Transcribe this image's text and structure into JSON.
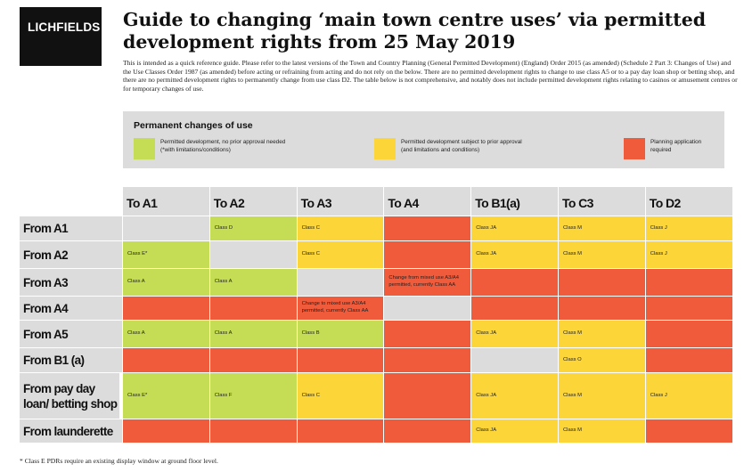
{
  "logo": "LICHFIELDS",
  "title": "Guide to changing ‘main town centre uses’ via permitted development rights from 25 May 2019",
  "intro": "This is intended as a quick reference guide.  Please refer to the latest versions of the Town and Country Planning (General Permitted Development) (England) Order 2015 (as amended) (Schedule 2 Part 3: Changes of Use) and the Use Classes Order 1987 (as amended) before acting or refraining from acting and do not rely on the below. There are no permitted development rights to change to use class A5 or to a pay day loan shop or betting shop, and there are no permitted development rights to permanently change from use class D2. The table below is not comprehensive, and notably does not include permitted development rights relating to casinos or amusement centres or for temporary changes of use.",
  "legend": {
    "title": "Permanent changes of use",
    "items": [
      {
        "color": "#c5dd55",
        "text": "Permitted development, no prior approval needed (*with limitations/conditions)"
      },
      {
        "color": "#fcd538",
        "text": "Permitted development subject to prior approval (and limitations and conditions)"
      },
      {
        "color": "#f05b3c",
        "text": "Planning application required"
      }
    ]
  },
  "columns": [
    "To A1",
    "To A2",
    "To A3",
    "To A4",
    "To B1(a)",
    "To C3",
    "To D2"
  ],
  "rows": [
    {
      "label": "From A1",
      "cells": [
        {
          "c": "n",
          "t": ""
        },
        {
          "c": "g",
          "t": "Class D"
        },
        {
          "c": "y",
          "t": "Class C"
        },
        {
          "c": "r",
          "t": ""
        },
        {
          "c": "y",
          "t": "Class JA"
        },
        {
          "c": "y",
          "t": "Class M"
        },
        {
          "c": "y",
          "t": "Class J"
        }
      ]
    },
    {
      "label": "From A2",
      "cells": [
        {
          "c": "g",
          "t": "Class E*"
        },
        {
          "c": "n",
          "t": ""
        },
        {
          "c": "y",
          "t": "Class C"
        },
        {
          "c": "r",
          "t": ""
        },
        {
          "c": "y",
          "t": "Class JA"
        },
        {
          "c": "y",
          "t": "Class M"
        },
        {
          "c": "y",
          "t": "Class J"
        }
      ]
    },
    {
      "label": "From A3",
      "cells": [
        {
          "c": "g",
          "t": "Class A"
        },
        {
          "c": "g",
          "t": "Class A"
        },
        {
          "c": "n",
          "t": ""
        },
        {
          "c": "r",
          "t": "Change from mixed use A3/A4 permitted, currently Class AA"
        },
        {
          "c": "r",
          "t": ""
        },
        {
          "c": "r",
          "t": ""
        },
        {
          "c": "r",
          "t": ""
        }
      ]
    },
    {
      "label": "From A4",
      "cells": [
        {
          "c": "r",
          "t": ""
        },
        {
          "c": "r",
          "t": ""
        },
        {
          "c": "r",
          "t": "Change to mixed use A3/A4 permitted, currently Class AA"
        },
        {
          "c": "n",
          "t": ""
        },
        {
          "c": "r",
          "t": ""
        },
        {
          "c": "r",
          "t": ""
        },
        {
          "c": "r",
          "t": ""
        }
      ]
    },
    {
      "label": "From A5",
      "cells": [
        {
          "c": "g",
          "t": "Class A"
        },
        {
          "c": "g",
          "t": "Class A"
        },
        {
          "c": "g",
          "t": "Class B"
        },
        {
          "c": "r",
          "t": ""
        },
        {
          "c": "y",
          "t": "Class JA"
        },
        {
          "c": "y",
          "t": "Class M"
        },
        {
          "c": "r",
          "t": ""
        }
      ]
    },
    {
      "label": "From B1 (a)",
      "cells": [
        {
          "c": "r",
          "t": ""
        },
        {
          "c": "r",
          "t": ""
        },
        {
          "c": "r",
          "t": ""
        },
        {
          "c": "r",
          "t": ""
        },
        {
          "c": "n",
          "t": ""
        },
        {
          "c": "y",
          "t": "Class O"
        },
        {
          "c": "r",
          "t": ""
        }
      ]
    },
    {
      "label": "From pay day loan/ betting shop",
      "cells": [
        {
          "c": "g",
          "t": "Class E*"
        },
        {
          "c": "g",
          "t": "Class F"
        },
        {
          "c": "y",
          "t": "Class C"
        },
        {
          "c": "r",
          "t": ""
        },
        {
          "c": "y",
          "t": "Class JA"
        },
        {
          "c": "y",
          "t": "Class M"
        },
        {
          "c": "y",
          "t": "Class J"
        }
      ]
    },
    {
      "label": "From launderette",
      "cells": [
        {
          "c": "r",
          "t": ""
        },
        {
          "c": "r",
          "t": ""
        },
        {
          "c": "r",
          "t": ""
        },
        {
          "c": "r",
          "t": ""
        },
        {
          "c": "y",
          "t": "Class JA"
        },
        {
          "c": "y",
          "t": "Class M"
        },
        {
          "c": "r",
          "t": ""
        }
      ]
    }
  ],
  "footnote": "* Class E PDRs require an existing display window at ground floor level."
}
